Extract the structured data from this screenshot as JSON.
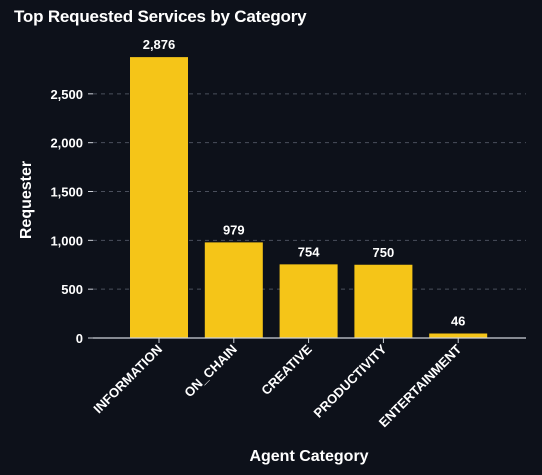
{
  "chart_data": {
    "type": "bar",
    "title": "Top Requested Services by Category",
    "xlabel": "Agent Category",
    "ylabel": "Requester",
    "categories": [
      "INFORMATION",
      "ON_CHAIN",
      "CREATIVE",
      "PRODUCTIVITY",
      "ENTERTAINMENT"
    ],
    "values": [
      2876,
      979,
      754,
      750,
      46
    ],
    "value_labels": [
      "2,876",
      "979",
      "754",
      "750",
      "46"
    ],
    "yticks": [
      0,
      500,
      1000,
      1500,
      2000,
      2500
    ],
    "ytick_labels": [
      "0",
      "500",
      "1,000",
      "1,500",
      "2,000",
      "2,500"
    ],
    "ylim": [
      0,
      3000
    ],
    "grid": true,
    "bar_color": "#f5c518",
    "grid_color": "#4a4f5c",
    "background": "#0d111a"
  }
}
